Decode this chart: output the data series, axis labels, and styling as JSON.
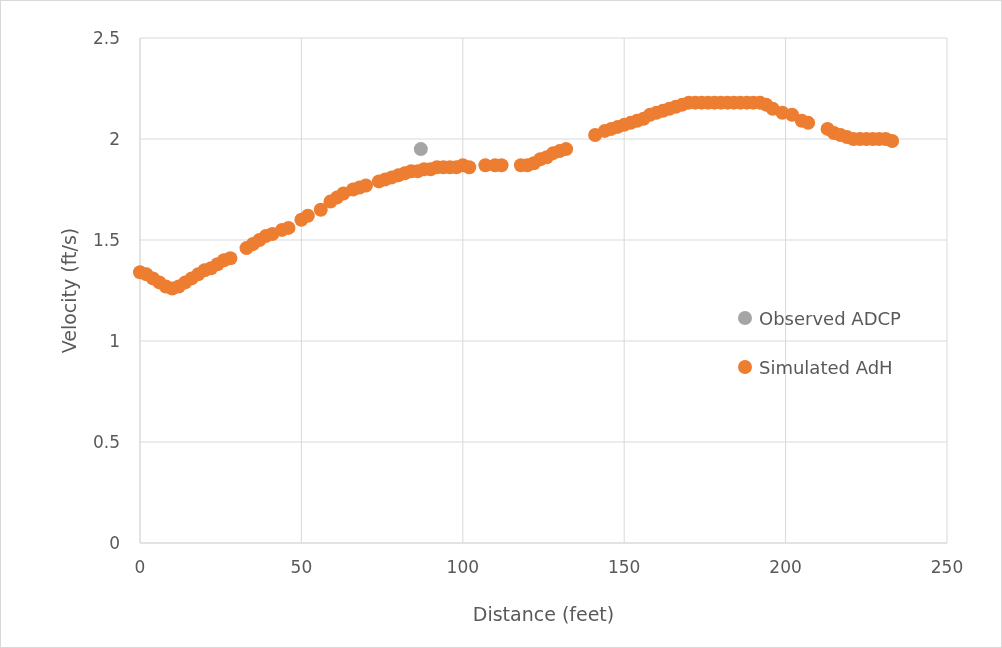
{
  "chart_data": {
    "type": "scatter",
    "xlabel": "Distance (feet)",
    "ylabel": "Velocity (ft/s)",
    "xlim": [
      0,
      250
    ],
    "xticks": [
      0,
      50,
      100,
      150,
      200,
      250
    ],
    "ylim": [
      0,
      2.5
    ],
    "yticks": [
      0,
      0.5,
      1,
      1.5,
      2,
      2.5
    ],
    "grid": true,
    "legend": "right",
    "marker": "circle",
    "series": [
      {
        "name": "Observed ADCP",
        "color": "#a5a5a5",
        "x": [
          87
        ],
        "values": [
          1.95
        ]
      },
      {
        "name": "Simulated AdH",
        "color": "#ed7d31",
        "x": [
          0,
          2,
          4,
          6,
          8,
          10,
          12,
          14,
          16,
          18,
          20,
          22,
          24,
          26,
          28,
          33,
          35,
          37,
          39,
          41,
          44,
          46,
          50,
          52,
          56,
          59,
          61,
          63,
          66,
          68,
          70,
          74,
          76,
          78,
          80,
          82,
          84,
          86,
          88,
          90,
          92,
          94,
          96,
          98,
          100,
          102,
          107,
          110,
          112,
          118,
          120,
          122,
          124,
          126,
          128,
          130,
          132,
          141,
          144,
          146,
          148,
          150,
          152,
          154,
          156,
          158,
          160,
          162,
          164,
          166,
          168,
          170,
          172,
          174,
          176,
          178,
          180,
          182,
          184,
          186,
          188,
          190,
          192,
          194,
          196,
          199,
          202,
          205,
          207,
          213,
          215,
          217,
          219,
          221,
          223,
          225,
          227,
          229,
          231,
          233
        ],
        "values": [
          1.34,
          1.33,
          1.31,
          1.29,
          1.27,
          1.26,
          1.27,
          1.29,
          1.31,
          1.33,
          1.35,
          1.36,
          1.38,
          1.4,
          1.41,
          1.46,
          1.48,
          1.5,
          1.52,
          1.53,
          1.55,
          1.56,
          1.6,
          1.62,
          1.65,
          1.69,
          1.71,
          1.73,
          1.75,
          1.76,
          1.77,
          1.79,
          1.8,
          1.81,
          1.82,
          1.83,
          1.84,
          1.84,
          1.85,
          1.85,
          1.86,
          1.86,
          1.86,
          1.86,
          1.87,
          1.86,
          1.87,
          1.87,
          1.87,
          1.87,
          1.87,
          1.88,
          1.9,
          1.91,
          1.93,
          1.94,
          1.95,
          2.02,
          2.04,
          2.05,
          2.06,
          2.07,
          2.08,
          2.09,
          2.1,
          2.12,
          2.13,
          2.14,
          2.15,
          2.16,
          2.17,
          2.18,
          2.18,
          2.18,
          2.18,
          2.18,
          2.18,
          2.18,
          2.18,
          2.18,
          2.18,
          2.18,
          2.18,
          2.17,
          2.15,
          2.13,
          2.12,
          2.09,
          2.08,
          2.05,
          2.03,
          2.02,
          2.01,
          2,
          2,
          2,
          2,
          2,
          2,
          1.99
        ]
      }
    ]
  }
}
